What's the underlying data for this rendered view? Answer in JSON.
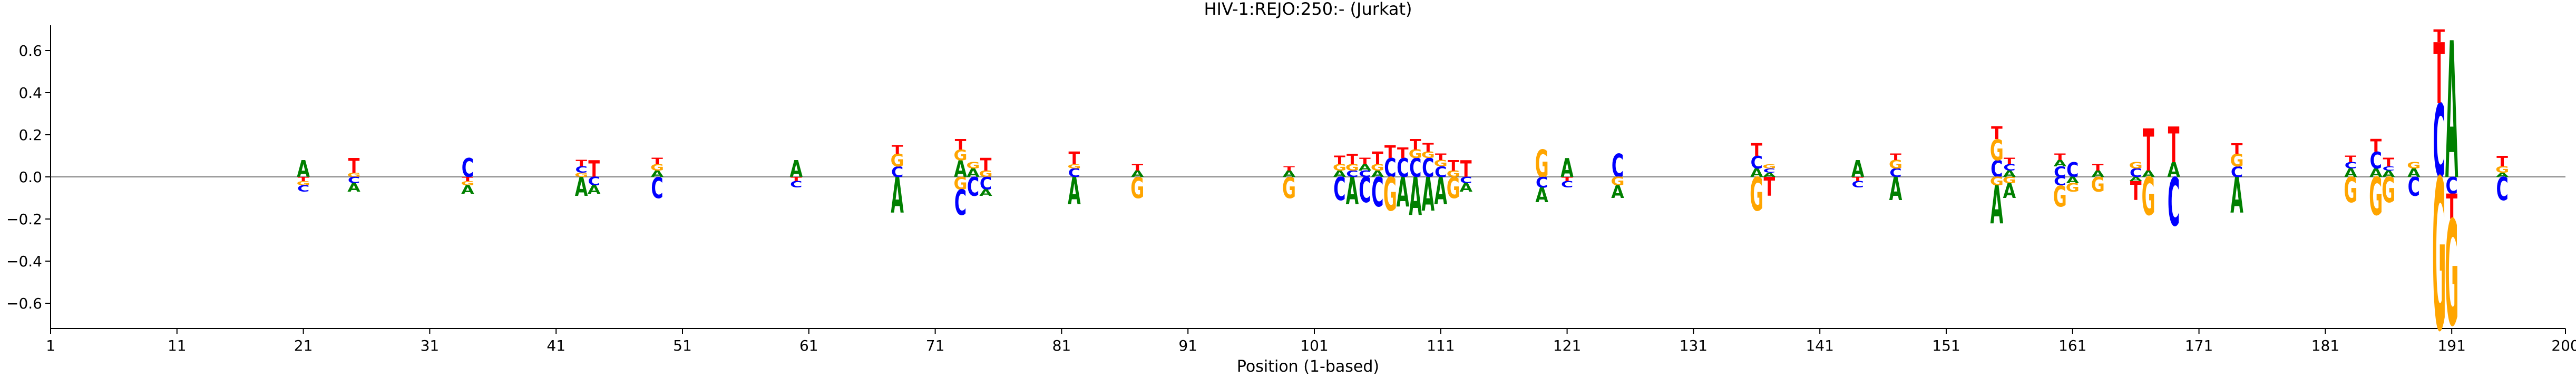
{
  "chart_data": {
    "type": "sequence-logo",
    "title": "HIV-1:REJO:250:-  (Jurkat)",
    "xlabel": "Position (1-based)",
    "ylabel": "",
    "xlim": [
      1,
      200
    ],
    "ylim": [
      -0.72,
      0.72
    ],
    "xticks": [
      1,
      11,
      21,
      31,
      41,
      51,
      61,
      71,
      81,
      91,
      101,
      111,
      121,
      131,
      141,
      151,
      161,
      171,
      181,
      191,
      200
    ],
    "yticks": [
      -0.6,
      -0.4,
      -0.2,
      0.0,
      0.2,
      0.4,
      0.6
    ],
    "ytick_labels": [
      "−0.6",
      "−0.4",
      "−0.2",
      "0.0",
      "0.2",
      "0.4",
      "0.6"
    ],
    "colors": {
      "A": "#008000",
      "C": "#0000ff",
      "G": "#ffa500",
      "T": "#ff0000"
    },
    "positions": [
      {
        "pos": 21,
        "stack": [
          {
            "b": "A",
            "h": 0.08
          },
          {
            "b": "T",
            "h": -0.02
          },
          {
            "b": "G",
            "h": -0.02
          },
          {
            "b": "C",
            "h": -0.03
          }
        ]
      },
      {
        "pos": 25,
        "stack": [
          {
            "b": "G",
            "h": 0.02
          },
          {
            "b": "T",
            "h": 0.07
          },
          {
            "b": "C",
            "h": -0.03
          },
          {
            "b": "A",
            "h": -0.04
          }
        ]
      },
      {
        "pos": 34,
        "stack": [
          {
            "b": "C",
            "h": 0.09
          },
          {
            "b": "T",
            "h": -0.02
          },
          {
            "b": "G",
            "h": -0.02
          },
          {
            "b": "A",
            "h": -0.04
          }
        ]
      },
      {
        "pos": 43,
        "stack": [
          {
            "b": "G",
            "h": 0.02
          },
          {
            "b": "C",
            "h": 0.03
          },
          {
            "b": "T",
            "h": 0.03
          },
          {
            "b": "A",
            "h": -0.09
          }
        ]
      },
      {
        "pos": 44,
        "stack": [
          {
            "b": "T",
            "h": 0.08
          },
          {
            "b": "C",
            "h": -0.04
          },
          {
            "b": "A",
            "h": -0.04
          }
        ]
      },
      {
        "pos": 49,
        "stack": [
          {
            "b": "A",
            "h": 0.03
          },
          {
            "b": "G",
            "h": 0.03
          },
          {
            "b": "T",
            "h": 0.03
          },
          {
            "b": "C",
            "h": -0.1
          }
        ]
      },
      {
        "pos": 60,
        "stack": [
          {
            "b": "A",
            "h": 0.08
          },
          {
            "b": "T",
            "h": -0.02
          },
          {
            "b": "C",
            "h": -0.03
          }
        ]
      },
      {
        "pos": 68,
        "stack": [
          {
            "b": "C",
            "h": 0.05
          },
          {
            "b": "G",
            "h": 0.06
          },
          {
            "b": "T",
            "h": 0.04
          },
          {
            "b": "A",
            "h": -0.17
          }
        ]
      },
      {
        "pos": 73,
        "stack": [
          {
            "b": "A",
            "h": 0.08
          },
          {
            "b": "G",
            "h": 0.05
          },
          {
            "b": "T",
            "h": 0.05
          },
          {
            "b": "G",
            "h": -0.06
          },
          {
            "b": "C",
            "h": -0.12
          }
        ]
      },
      {
        "pos": 74,
        "stack": [
          {
            "b": "A",
            "h": 0.04
          },
          {
            "b": "G",
            "h": 0.03
          },
          {
            "b": "C",
            "h": -0.09
          }
        ]
      },
      {
        "pos": 75,
        "stack": [
          {
            "b": "G",
            "h": 0.03
          },
          {
            "b": "T",
            "h": 0.06
          },
          {
            "b": "C",
            "h": -0.06
          },
          {
            "b": "A",
            "h": -0.03
          }
        ]
      },
      {
        "pos": 82,
        "stack": [
          {
            "b": "C",
            "h": 0.04
          },
          {
            "b": "G",
            "h": 0.02
          },
          {
            "b": "T",
            "h": 0.06
          },
          {
            "b": "A",
            "h": -0.13
          }
        ]
      },
      {
        "pos": 87,
        "stack": [
          {
            "b": "A",
            "h": 0.03
          },
          {
            "b": "T",
            "h": 0.03
          },
          {
            "b": "G",
            "h": -0.1
          }
        ]
      },
      {
        "pos": 99,
        "stack": [
          {
            "b": "A",
            "h": 0.03
          },
          {
            "b": "T",
            "h": 0.02
          },
          {
            "b": "G",
            "h": -0.1
          }
        ]
      },
      {
        "pos": 103,
        "stack": [
          {
            "b": "A",
            "h": 0.03
          },
          {
            "b": "G",
            "h": 0.03
          },
          {
            "b": "T",
            "h": 0.04
          },
          {
            "b": "C",
            "h": -0.11
          }
        ]
      },
      {
        "pos": 104,
        "stack": [
          {
            "b": "C",
            "h": 0.03
          },
          {
            "b": "G",
            "h": 0.03
          },
          {
            "b": "T",
            "h": 0.05
          },
          {
            "b": "A",
            "h": -0.13
          }
        ]
      },
      {
        "pos": 105,
        "stack": [
          {
            "b": "C",
            "h": 0.03
          },
          {
            "b": "A",
            "h": 0.03
          },
          {
            "b": "T",
            "h": 0.03
          },
          {
            "b": "C",
            "h": -0.12
          }
        ]
      },
      {
        "pos": 106,
        "stack": [
          {
            "b": "A",
            "h": 0.03
          },
          {
            "b": "G",
            "h": 0.03
          },
          {
            "b": "T",
            "h": 0.06
          },
          {
            "b": "C",
            "h": -0.14
          }
        ]
      },
      {
        "pos": 107,
        "stack": [
          {
            "b": "C",
            "h": 0.09
          },
          {
            "b": "T",
            "h": 0.06
          },
          {
            "b": "G",
            "h": -0.16
          }
        ]
      },
      {
        "pos": 108,
        "stack": [
          {
            "b": "C",
            "h": 0.09
          },
          {
            "b": "T",
            "h": 0.05
          },
          {
            "b": "A",
            "h": -0.14
          }
        ]
      },
      {
        "pos": 109,
        "stack": [
          {
            "b": "C",
            "h": 0.09
          },
          {
            "b": "G",
            "h": 0.04
          },
          {
            "b": "T",
            "h": 0.05
          },
          {
            "b": "A",
            "h": -0.18
          }
        ]
      },
      {
        "pos": 110,
        "stack": [
          {
            "b": "C",
            "h": 0.09
          },
          {
            "b": "G",
            "h": 0.03
          },
          {
            "b": "T",
            "h": 0.04
          },
          {
            "b": "A",
            "h": -0.16
          }
        ]
      },
      {
        "pos": 111,
        "stack": [
          {
            "b": "C",
            "h": 0.05
          },
          {
            "b": "G",
            "h": 0.03
          },
          {
            "b": "T",
            "h": 0.03
          },
          {
            "b": "A",
            "h": -0.13
          }
        ]
      },
      {
        "pos": 112,
        "stack": [
          {
            "b": "G",
            "h": 0.03
          },
          {
            "b": "T",
            "h": 0.05
          },
          {
            "b": "G",
            "h": -0.1
          }
        ]
      },
      {
        "pos": 113,
        "stack": [
          {
            "b": "T",
            "h": 0.08
          },
          {
            "b": "C",
            "h": -0.03
          },
          {
            "b": "A",
            "h": -0.04
          }
        ]
      },
      {
        "pos": 119,
        "stack": [
          {
            "b": "G",
            "h": 0.13
          },
          {
            "b": "C",
            "h": -0.05
          },
          {
            "b": "A",
            "h": -0.07
          }
        ]
      },
      {
        "pos": 121,
        "stack": [
          {
            "b": "A",
            "h": 0.09
          },
          {
            "b": "T",
            "h": -0.02
          },
          {
            "b": "C",
            "h": -0.03
          }
        ]
      },
      {
        "pos": 125,
        "stack": [
          {
            "b": "C",
            "h": 0.11
          },
          {
            "b": "G",
            "h": -0.04
          },
          {
            "b": "A",
            "h": -0.06
          }
        ]
      },
      {
        "pos": 136,
        "stack": [
          {
            "b": "A",
            "h": 0.04
          },
          {
            "b": "C",
            "h": 0.06
          },
          {
            "b": "T",
            "h": 0.06
          },
          {
            "b": "G",
            "h": -0.16
          }
        ]
      },
      {
        "pos": 137,
        "stack": [
          {
            "b": "A",
            "h": 0.02
          },
          {
            "b": "C",
            "h": 0.02
          },
          {
            "b": "G",
            "h": 0.02
          },
          {
            "b": "T",
            "h": -0.09
          }
        ]
      },
      {
        "pos": 144,
        "stack": [
          {
            "b": "A",
            "h": 0.08
          },
          {
            "b": "T",
            "h": -0.02
          },
          {
            "b": "C",
            "h": -0.03
          }
        ]
      },
      {
        "pos": 147,
        "stack": [
          {
            "b": "C",
            "h": 0.04
          },
          {
            "b": "G",
            "h": 0.04
          },
          {
            "b": "T",
            "h": 0.03
          },
          {
            "b": "A",
            "h": -0.11
          }
        ]
      },
      {
        "pos": 155,
        "stack": [
          {
            "b": "C",
            "h": 0.08
          },
          {
            "b": "G",
            "h": 0.1
          },
          {
            "b": "T",
            "h": 0.06
          },
          {
            "b": "G",
            "h": -0.04
          },
          {
            "b": "A",
            "h": -0.18
          }
        ]
      },
      {
        "pos": 156,
        "stack": [
          {
            "b": "A",
            "h": 0.03
          },
          {
            "b": "C",
            "h": 0.03
          },
          {
            "b": "T",
            "h": 0.03
          },
          {
            "b": "G",
            "h": -0.03
          },
          {
            "b": "A",
            "h": -0.07
          }
        ]
      },
      {
        "pos": 160,
        "stack": [
          {
            "b": "C",
            "h": 0.05
          },
          {
            "b": "A",
            "h": 0.03
          },
          {
            "b": "T",
            "h": 0.03
          },
          {
            "b": "C",
            "h": -0.04
          },
          {
            "b": "G",
            "h": -0.1
          }
        ]
      },
      {
        "pos": 161,
        "stack": [
          {
            "b": "C",
            "h": 0.07
          },
          {
            "b": "A",
            "h": -0.03
          },
          {
            "b": "G",
            "h": -0.04
          }
        ]
      },
      {
        "pos": 163,
        "stack": [
          {
            "b": "A",
            "h": 0.03
          },
          {
            "b": "T",
            "h": 0.03
          },
          {
            "b": "G",
            "h": -0.07
          }
        ]
      },
      {
        "pos": 166,
        "stack": [
          {
            "b": "C",
            "h": 0.04
          },
          {
            "b": "G",
            "h": 0.03
          },
          {
            "b": "A",
            "h": -0.02
          },
          {
            "b": "T",
            "h": -0.09
          }
        ]
      },
      {
        "pos": 167,
        "stack": [
          {
            "b": "A",
            "h": 0.03
          },
          {
            "b": "T",
            "h": 0.2
          },
          {
            "b": "G",
            "h": -0.18
          }
        ]
      },
      {
        "pos": 169,
        "stack": [
          {
            "b": "A",
            "h": 0.07
          },
          {
            "b": "T",
            "h": 0.17
          },
          {
            "b": "C",
            "h": -0.23
          }
        ]
      },
      {
        "pos": 174,
        "stack": [
          {
            "b": "C",
            "h": 0.05
          },
          {
            "b": "G",
            "h": 0.06
          },
          {
            "b": "T",
            "h": 0.05
          },
          {
            "b": "A",
            "h": -0.17
          }
        ]
      },
      {
        "pos": 183,
        "stack": [
          {
            "b": "A",
            "h": 0.04
          },
          {
            "b": "C",
            "h": 0.03
          },
          {
            "b": "T",
            "h": 0.03
          },
          {
            "b": "G",
            "h": -0.12
          }
        ]
      },
      {
        "pos": 185,
        "stack": [
          {
            "b": "A",
            "h": 0.04
          },
          {
            "b": "C",
            "h": 0.08
          },
          {
            "b": "T",
            "h": 0.06
          },
          {
            "b": "G",
            "h": -0.18
          }
        ]
      },
      {
        "pos": 186,
        "stack": [
          {
            "b": "A",
            "h": 0.03
          },
          {
            "b": "C",
            "h": 0.02
          },
          {
            "b": "T",
            "h": 0.04
          },
          {
            "b": "G",
            "h": -0.12
          }
        ]
      },
      {
        "pos": 188,
        "stack": [
          {
            "b": "A",
            "h": 0.04
          },
          {
            "b": "G",
            "h": 0.03
          },
          {
            "b": "C",
            "h": -0.09
          }
        ]
      },
      {
        "pos": 190,
        "stack": [
          {
            "b": "C",
            "h": 0.35
          },
          {
            "b": "T",
            "h": 0.29
          },
          {
            "b": "T",
            "h": 0.06
          },
          {
            "b": "G",
            "h": -0.72
          }
        ]
      },
      {
        "pos": 191,
        "stack": [
          {
            "b": "A",
            "h": 0.65
          },
          {
            "b": "C",
            "h": -0.08
          },
          {
            "b": "T",
            "h": -0.12
          },
          {
            "b": "G",
            "h": -0.5
          }
        ]
      },
      {
        "pos": 195,
        "stack": [
          {
            "b": "A",
            "h": 0.02
          },
          {
            "b": "G",
            "h": 0.03
          },
          {
            "b": "T",
            "h": 0.05
          },
          {
            "b": "C",
            "h": -0.11
          }
        ]
      }
    ]
  }
}
